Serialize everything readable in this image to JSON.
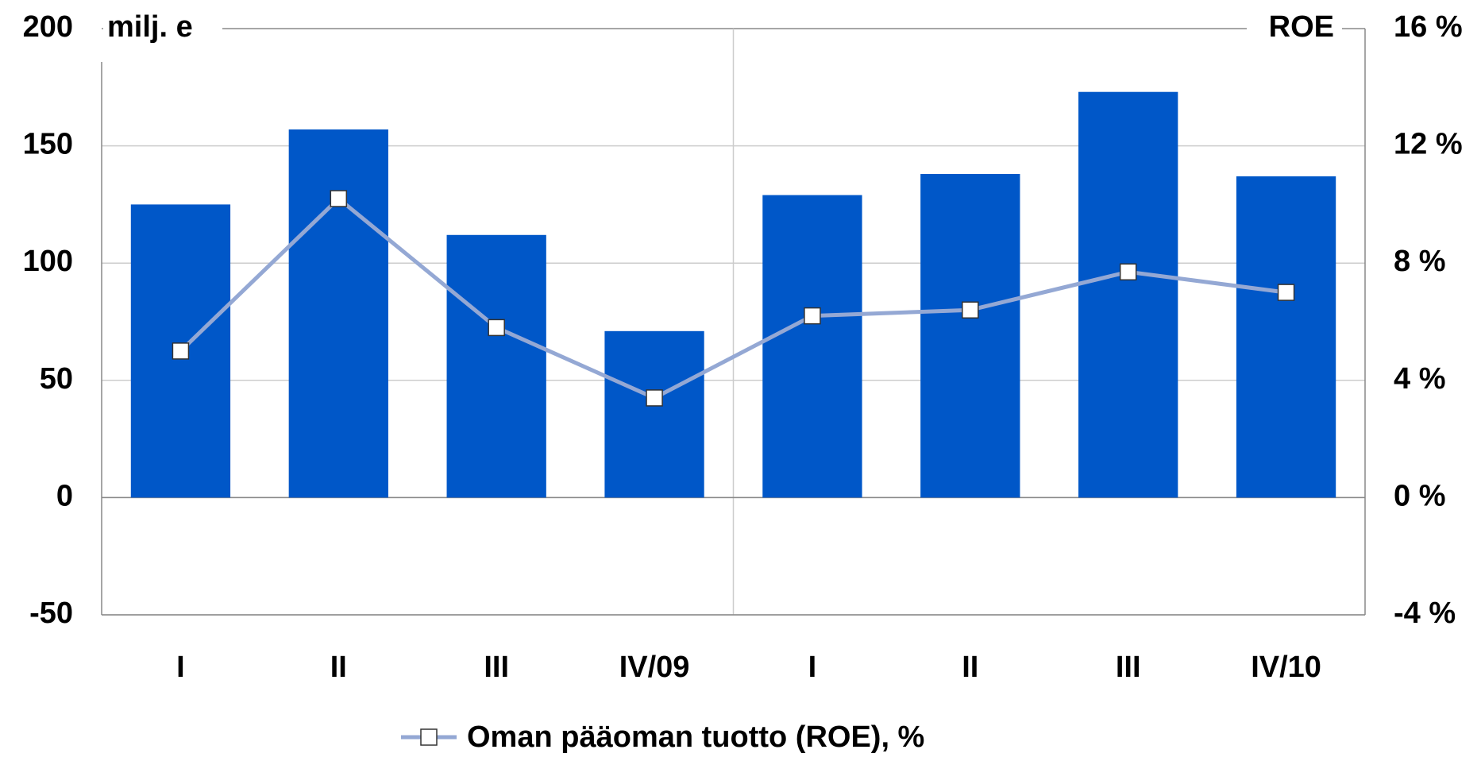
{
  "chart_data": {
    "type": "bar",
    "y_label": "milj. e",
    "y2_label": "ROE",
    "categories": [
      "I",
      "II",
      "III",
      "IV/09",
      "I",
      "II",
      "III",
      "IV/10"
    ],
    "series": [
      {
        "type": "bar",
        "color": "#0057c8",
        "values": [
          125,
          157,
          112,
          71,
          129,
          138,
          173,
          137
        ]
      },
      {
        "type": "line",
        "name": "Oman pääoman tuotto (ROE), %",
        "color": "#94a8d4",
        "axis": "y2",
        "values": [
          5.0,
          10.2,
          5.8,
          3.4,
          6.2,
          6.4,
          7.7,
          7.0
        ]
      }
    ],
    "ylim": [
      -50,
      200
    ],
    "yticks": [
      -50,
      0,
      50,
      100,
      150,
      200
    ],
    "y2lim": [
      -4,
      16
    ],
    "y2ticks": [
      {
        "value": -4,
        "label": "-4 %"
      },
      {
        "value": 0,
        "label": "0 %"
      },
      {
        "value": 4,
        "label": "4 %"
      },
      {
        "value": 8,
        "label": "8 %"
      },
      {
        "value": 12,
        "label": "12 %"
      },
      {
        "value": 16,
        "label": "16 %"
      }
    ],
    "grid": true
  }
}
